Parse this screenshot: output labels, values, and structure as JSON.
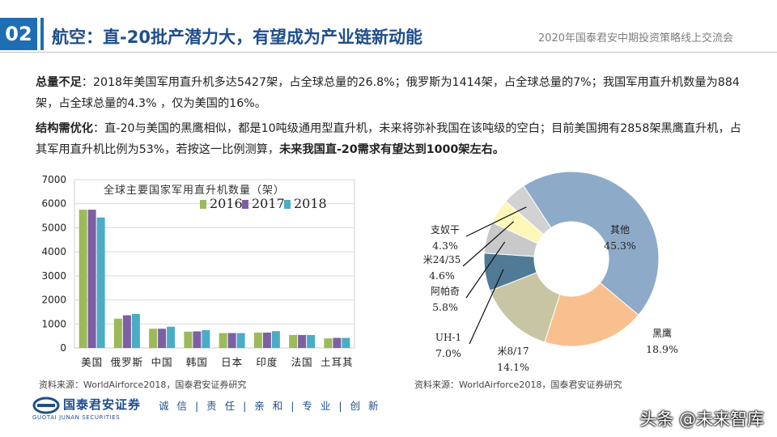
{
  "header": {
    "section_number": "02",
    "title": "航空：直-20批产潜力大，有望成为产业链新动能",
    "event": "2020年国泰君安中期投资策略线上交流会"
  },
  "paragraphs": {
    "p1_label": "总量不足",
    "p1_text": "：2018年美国军用直升机多达5427架，占全球总量的26.8%；俄罗斯为1414架，占全球总量的7%；我国军用直升机数量为884架，占全球总量的4.3% ，仅为美国的16%。",
    "p2_label": "结构需优化",
    "p2_text": "：直-20与美国的黑鹰相似，都是10吨级通用型直升机，未来将弥补我国在该吨级的空白；目前美国拥有2858架黑鹰直升机，占其军用直升机比例为53%，若按这一比例测算，",
    "p2_emphasis": "未来我国直-20需求有望达到1000架左右。"
  },
  "chart_data": [
    {
      "type": "bar",
      "title": "全球主要国家军用直升机数量（架）",
      "categories": [
        "美国",
        "俄罗斯",
        "中国",
        "韩国",
        "日本",
        "印度",
        "法国",
        "土耳其"
      ],
      "series": [
        {
          "name": "2016",
          "color": "#9bbb59",
          "values": [
            5750,
            1220,
            800,
            680,
            620,
            640,
            540,
            400
          ]
        },
        {
          "name": "2017",
          "color": "#7e5fa3",
          "values": [
            5750,
            1360,
            800,
            690,
            620,
            640,
            540,
            420
          ]
        },
        {
          "name": "2018",
          "color": "#4bacc6",
          "values": [
            5427,
            1414,
            884,
            740,
            620,
            700,
            540,
            420
          ]
        }
      ],
      "ylim": [
        0,
        7000
      ],
      "yticks": [
        0,
        1000,
        2000,
        3000,
        4000,
        5000,
        6000,
        7000
      ],
      "grid": true,
      "legend": "top-right"
    },
    {
      "type": "pie",
      "variant": "donut",
      "labels": [
        "其他",
        "黑鹰",
        "米8/17",
        "UH-1",
        "阿帕奇",
        "米24/35",
        "支奴干"
      ],
      "values": [
        45.3,
        18.9,
        14.1,
        7.0,
        5.8,
        4.6,
        4.3
      ],
      "value_labels": [
        "45.3%",
        "18.9%",
        "14.1%",
        "7.0%",
        "5.8%",
        "4.6%",
        "4.3%"
      ],
      "colors": [
        "#8eaac9",
        "#f9c08f",
        "#c7c5a3",
        "#507a96",
        "#c9c9c9",
        "#fdf7b8",
        "#d2d2d2"
      ]
    }
  ],
  "sources": {
    "left": "资料来源：WorldAirforce2018，国泰君安证券研究",
    "right": "资料来源：WorldAirforce2018，国泰君安证券研究"
  },
  "footer": {
    "logo_cn": "国泰君安证券",
    "logo_en": "GUOTAI JUNAN SECURITIES",
    "slogan": "诚 信 | 责 任 | 亲 和 | 专 业 | 创 新",
    "watermark": "头条 @未来智库"
  }
}
